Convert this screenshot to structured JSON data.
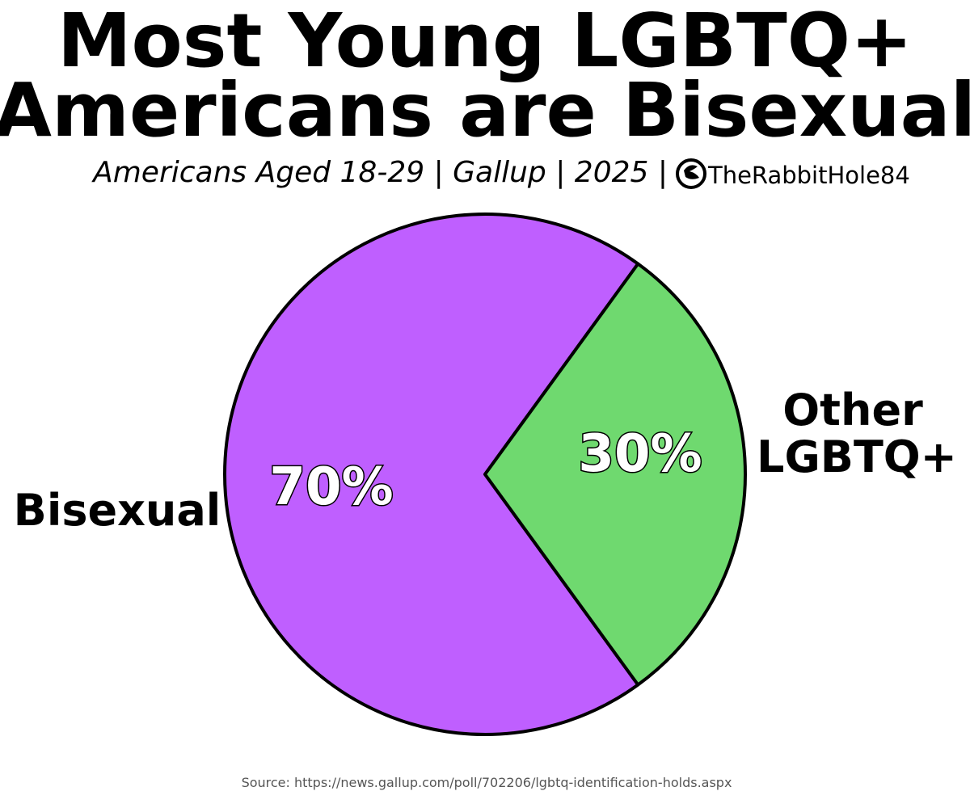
{
  "chart_data": {
    "type": "pie",
    "title_lines": [
      "Most Young LGBTQ+",
      "Americans are Bisexual"
    ],
    "subtitle": "Americans Aged 18-29 | Gallup | 2025 |",
    "brand_handle": "TheRabbitHole84",
    "brand_icon": "rabbit-logo-icon",
    "slices": [
      {
        "label": "Bisexual",
        "value": 70,
        "value_label": "70%",
        "color": "#bf5fff"
      },
      {
        "label_lines": [
          "Other",
          "LGBTQ+"
        ],
        "value": 30,
        "value_label": "30%",
        "color": "#6fd96f"
      }
    ],
    "source": "Source: https://news.gallup.com/poll/702206/lgbtq-identification-holds.aspx"
  }
}
